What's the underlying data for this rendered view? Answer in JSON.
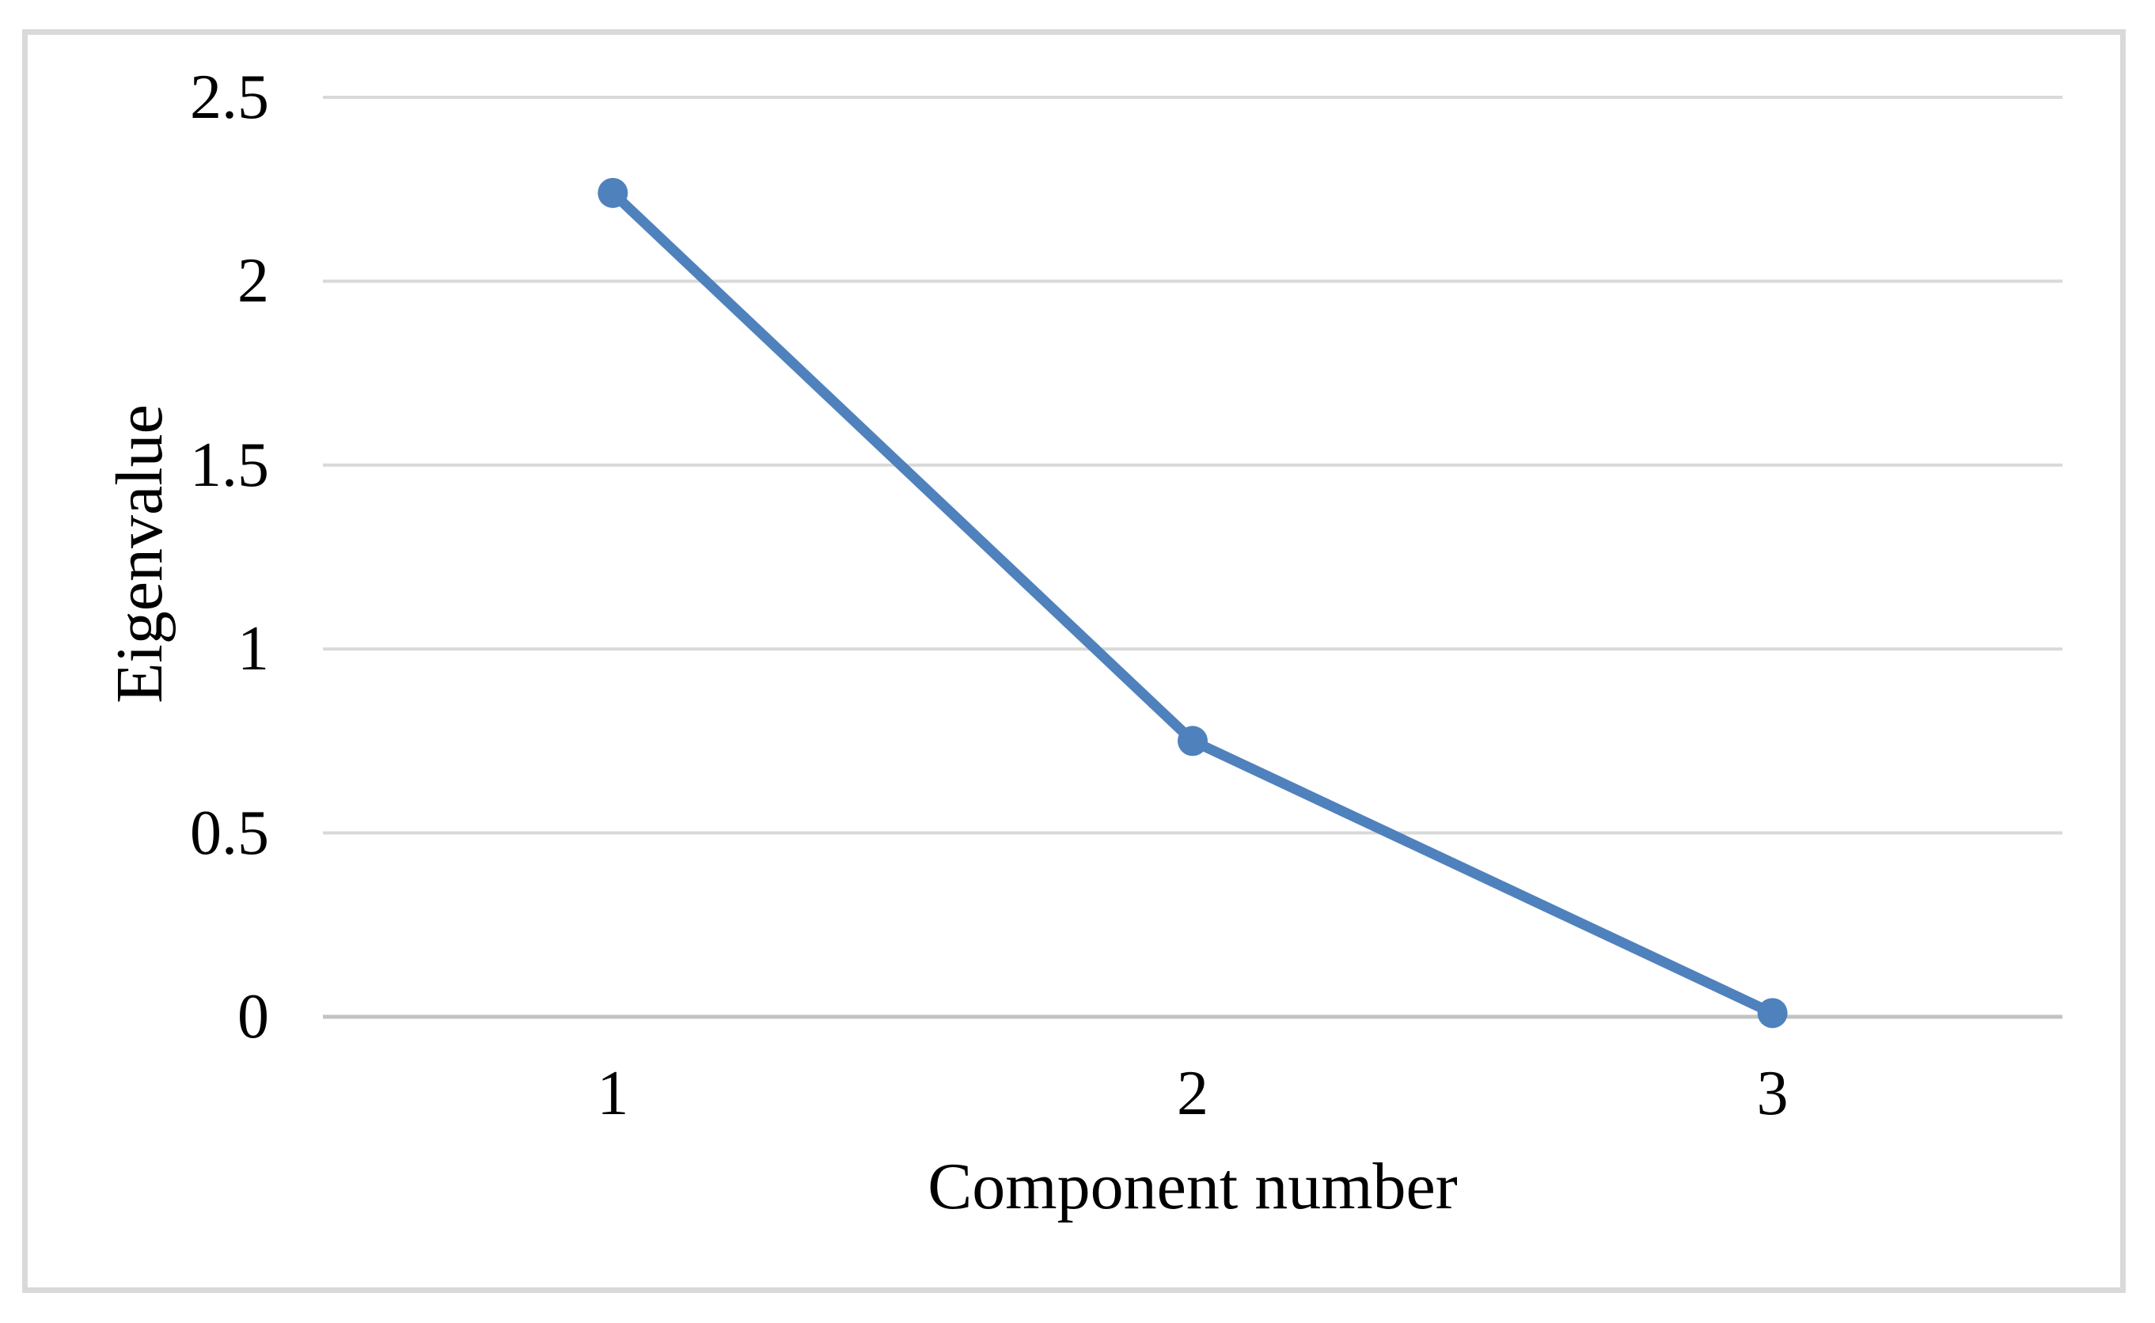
{
  "chart_data": {
    "type": "line",
    "title": "",
    "xlabel": "Component number",
    "ylabel": "Eigenvalue",
    "categories": [
      "1",
      "2",
      "3"
    ],
    "series": [
      {
        "name": "Eigenvalue",
        "values": [
          2.24,
          0.75,
          0.01
        ]
      }
    ],
    "yticks": [
      0,
      0.5,
      1,
      1.5,
      2,
      2.5
    ],
    "ytick_labels": [
      "0",
      "0.5",
      "1",
      "1.5",
      "2",
      "2.5"
    ],
    "ylim": [
      0,
      2.5
    ],
    "grid": true,
    "legend_position": "none",
    "marker": "circle",
    "colors": {
      "series": "#4F81BD",
      "gridline": "#D9D9D9",
      "axis_line": "#C3C3C3",
      "frame_border": "#D9D9D9",
      "text": "#000000",
      "background": "#FFFFFF"
    }
  }
}
